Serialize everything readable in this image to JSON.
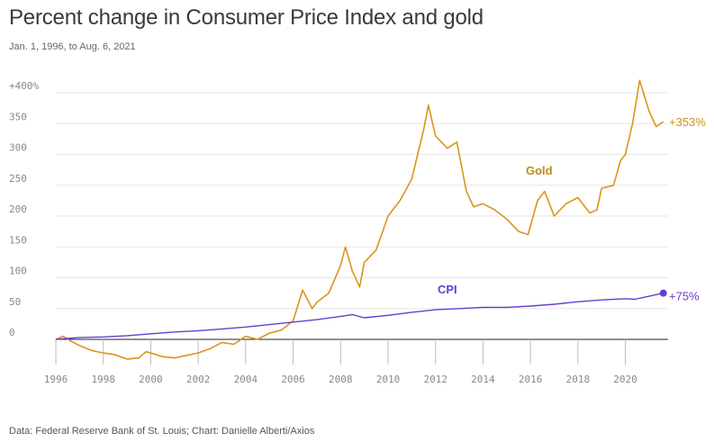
{
  "header": {
    "title": "Percent change in Consumer Price Index and gold",
    "subtitle": "Jan. 1, 1996, to Aug. 6, 2021"
  },
  "footer": {
    "source": "Data: Federal Reserve Bank of St. Louis; Chart: Danielle Alberti/Axios"
  },
  "colors": {
    "gold": "#d8961a",
    "cpi": "#6a3cd0",
    "grid": "#e6e6e6",
    "zero_line": "#222222"
  },
  "chart_data": {
    "type": "line",
    "title": "Percent change in Consumer Price Index and gold",
    "xlim": [
      1996,
      2021.8
    ],
    "ylim": [
      -40,
      420
    ],
    "x_ticks": [
      "1996",
      "1998",
      "2000",
      "2002",
      "2004",
      "2006",
      "2008",
      "2010",
      "2012",
      "2014",
      "2016",
      "2018",
      "2020"
    ],
    "y_ticks": [
      {
        "value": 400,
        "label": "+400%"
      },
      {
        "value": 350,
        "label": "350"
      },
      {
        "value": 300,
        "label": "300"
      },
      {
        "value": 250,
        "label": "250"
      },
      {
        "value": 200,
        "label": "200"
      },
      {
        "value": 150,
        "label": "150"
      },
      {
        "value": 100,
        "label": "100"
      },
      {
        "value": 50,
        "label": "50"
      },
      {
        "value": 0,
        "label": "0"
      }
    ],
    "grid": true,
    "series": [
      {
        "name": "Gold",
        "inline_label": "Gold",
        "end_label": "+353%",
        "x": [
          1996.0,
          1996.3,
          1996.6,
          1997.0,
          1997.5,
          1998.0,
          1998.5,
          1999.0,
          1999.5,
          1999.8,
          2000.0,
          2000.5,
          2001.0,
          2001.5,
          2002.0,
          2002.5,
          2003.0,
          2003.5,
          2004.0,
          2004.5,
          2005.0,
          2005.5,
          2006.0,
          2006.4,
          2006.8,
          2007.0,
          2007.5,
          2008.0,
          2008.2,
          2008.5,
          2008.8,
          2009.0,
          2009.5,
          2010.0,
          2010.5,
          2011.0,
          2011.5,
          2011.7,
          2012.0,
          2012.5,
          2012.9,
          2013.3,
          2013.6,
          2014.0,
          2014.5,
          2015.0,
          2015.5,
          2015.9,
          2016.3,
          2016.6,
          2017.0,
          2017.5,
          2018.0,
          2018.5,
          2018.8,
          2019.0,
          2019.5,
          2019.8,
          2020.0,
          2020.3,
          2020.6,
          2020.8,
          2021.0,
          2021.3,
          2021.6
        ],
        "values": [
          0,
          5,
          -2,
          -10,
          -18,
          -22,
          -25,
          -32,
          -30,
          -20,
          -22,
          -28,
          -30,
          -26,
          -22,
          -15,
          -5,
          -8,
          5,
          0,
          10,
          15,
          30,
          80,
          50,
          60,
          75,
          120,
          150,
          110,
          85,
          125,
          145,
          200,
          225,
          260,
          340,
          380,
          330,
          310,
          320,
          240,
          215,
          220,
          210,
          195,
          175,
          170,
          225,
          240,
          200,
          220,
          230,
          205,
          210,
          245,
          250,
          290,
          300,
          350,
          420,
          395,
          370,
          345,
          353
        ]
      },
      {
        "name": "CPI",
        "inline_label": "CPI",
        "end_label": "+75%",
        "x": [
          1996,
          1997,
          1998,
          1999,
          2000,
          2001,
          2002,
          2003,
          2004,
          2005,
          2006,
          2007,
          2008.5,
          2009,
          2010,
          2011,
          2012,
          2013,
          2014,
          2015,
          2016,
          2017,
          2018,
          2019,
          2020,
          2020.4,
          2021,
          2021.6
        ],
        "values": [
          0,
          3,
          4,
          6,
          9,
          12,
          14,
          17,
          20,
          24,
          28,
          32,
          40,
          35,
          39,
          44,
          48,
          50,
          52,
          52,
          54,
          57,
          61,
          64,
          66,
          65,
          70,
          75
        ]
      }
    ]
  }
}
